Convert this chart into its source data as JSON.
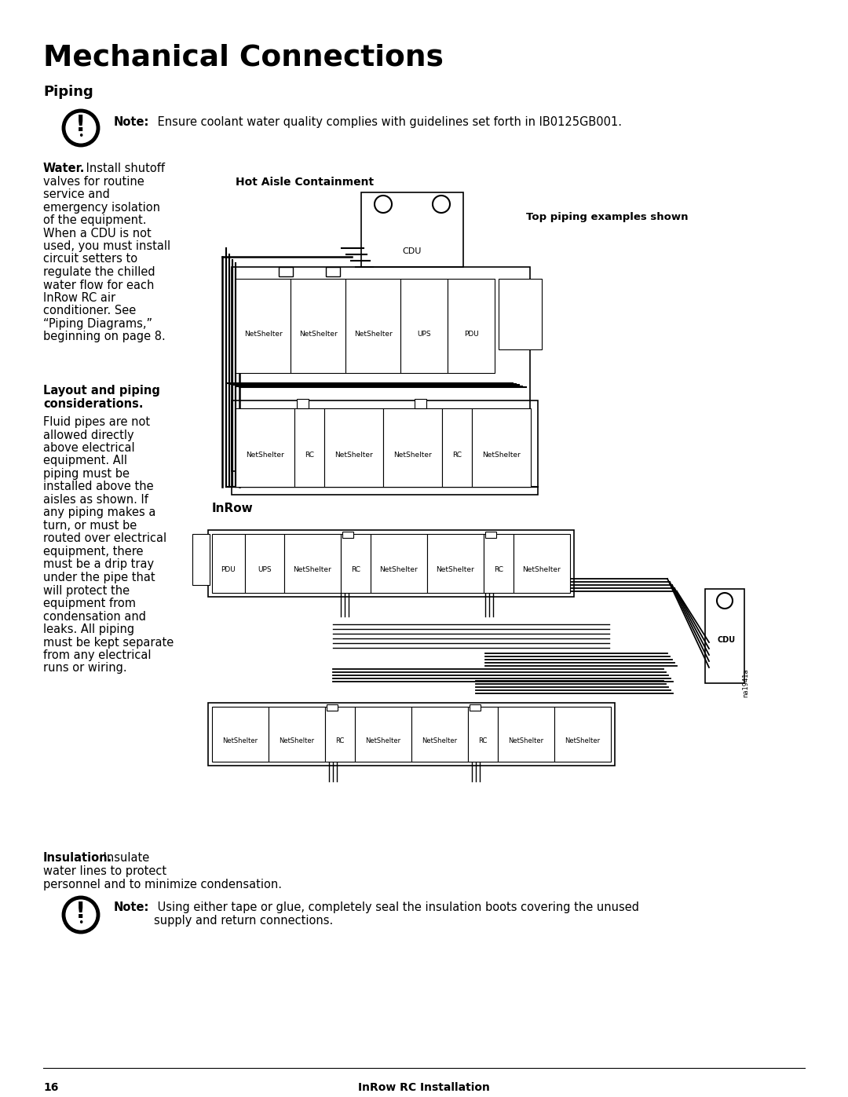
{
  "title": "Mechanical Connections",
  "subtitle": "Piping",
  "bg_color": "#ffffff",
  "text_color": "#000000",
  "page_number": "16",
  "footer_text": "InRow RC Installation",
  "note1_bold": "Note:",
  "note1_text": " Ensure coolant water quality complies with guidelines set forth in IB0125GB001.",
  "note2_bold": "Note:",
  "note2_text": " Using either tape or glue, completely seal the insulation boots covering the unused\nsupply and return connections.",
  "water_bold": "Water.",
  "water_rest": " Install shutoff\nvalves for routine\nservice and\nemergency isolation\nof the equipment.\nWhen a CDU is not\nused, you must install\ncircuit setters to\nregulate the chilled\nwater flow for each\nInRow RC air\nconditioner. See\n“Piping Diagrams,”\nbeginning on page 8.",
  "layout_bold": "Layout and piping\nconsiderations.",
  "layout_text": "Fluid pipes are not\nallowed directly\nabove electrical\nequipment. All\npiping must be\ninstalled above the\naisles as shown. If\nany piping makes a\nturn, or must be\nrouted over electrical\nequipment, there\nmust be a drip tray\nunder the pipe that\nwill protect the\nequipment from\ncondensation and\nleaks. All piping\nmust be kept separate\nfrom any electrical\nruns or wiring.",
  "insulation_bold": "Insulation.",
  "insulation_rest": " Insulate\nwater lines to protect\npersonnel and to minimize condensation.",
  "hot_aisle_label": "Hot Aisle Containment",
  "top_piping_label": "Top piping examples shown",
  "inrow_label": "InRow",
  "cdu_label": "CDU",
  "image_ref": "na1941a"
}
